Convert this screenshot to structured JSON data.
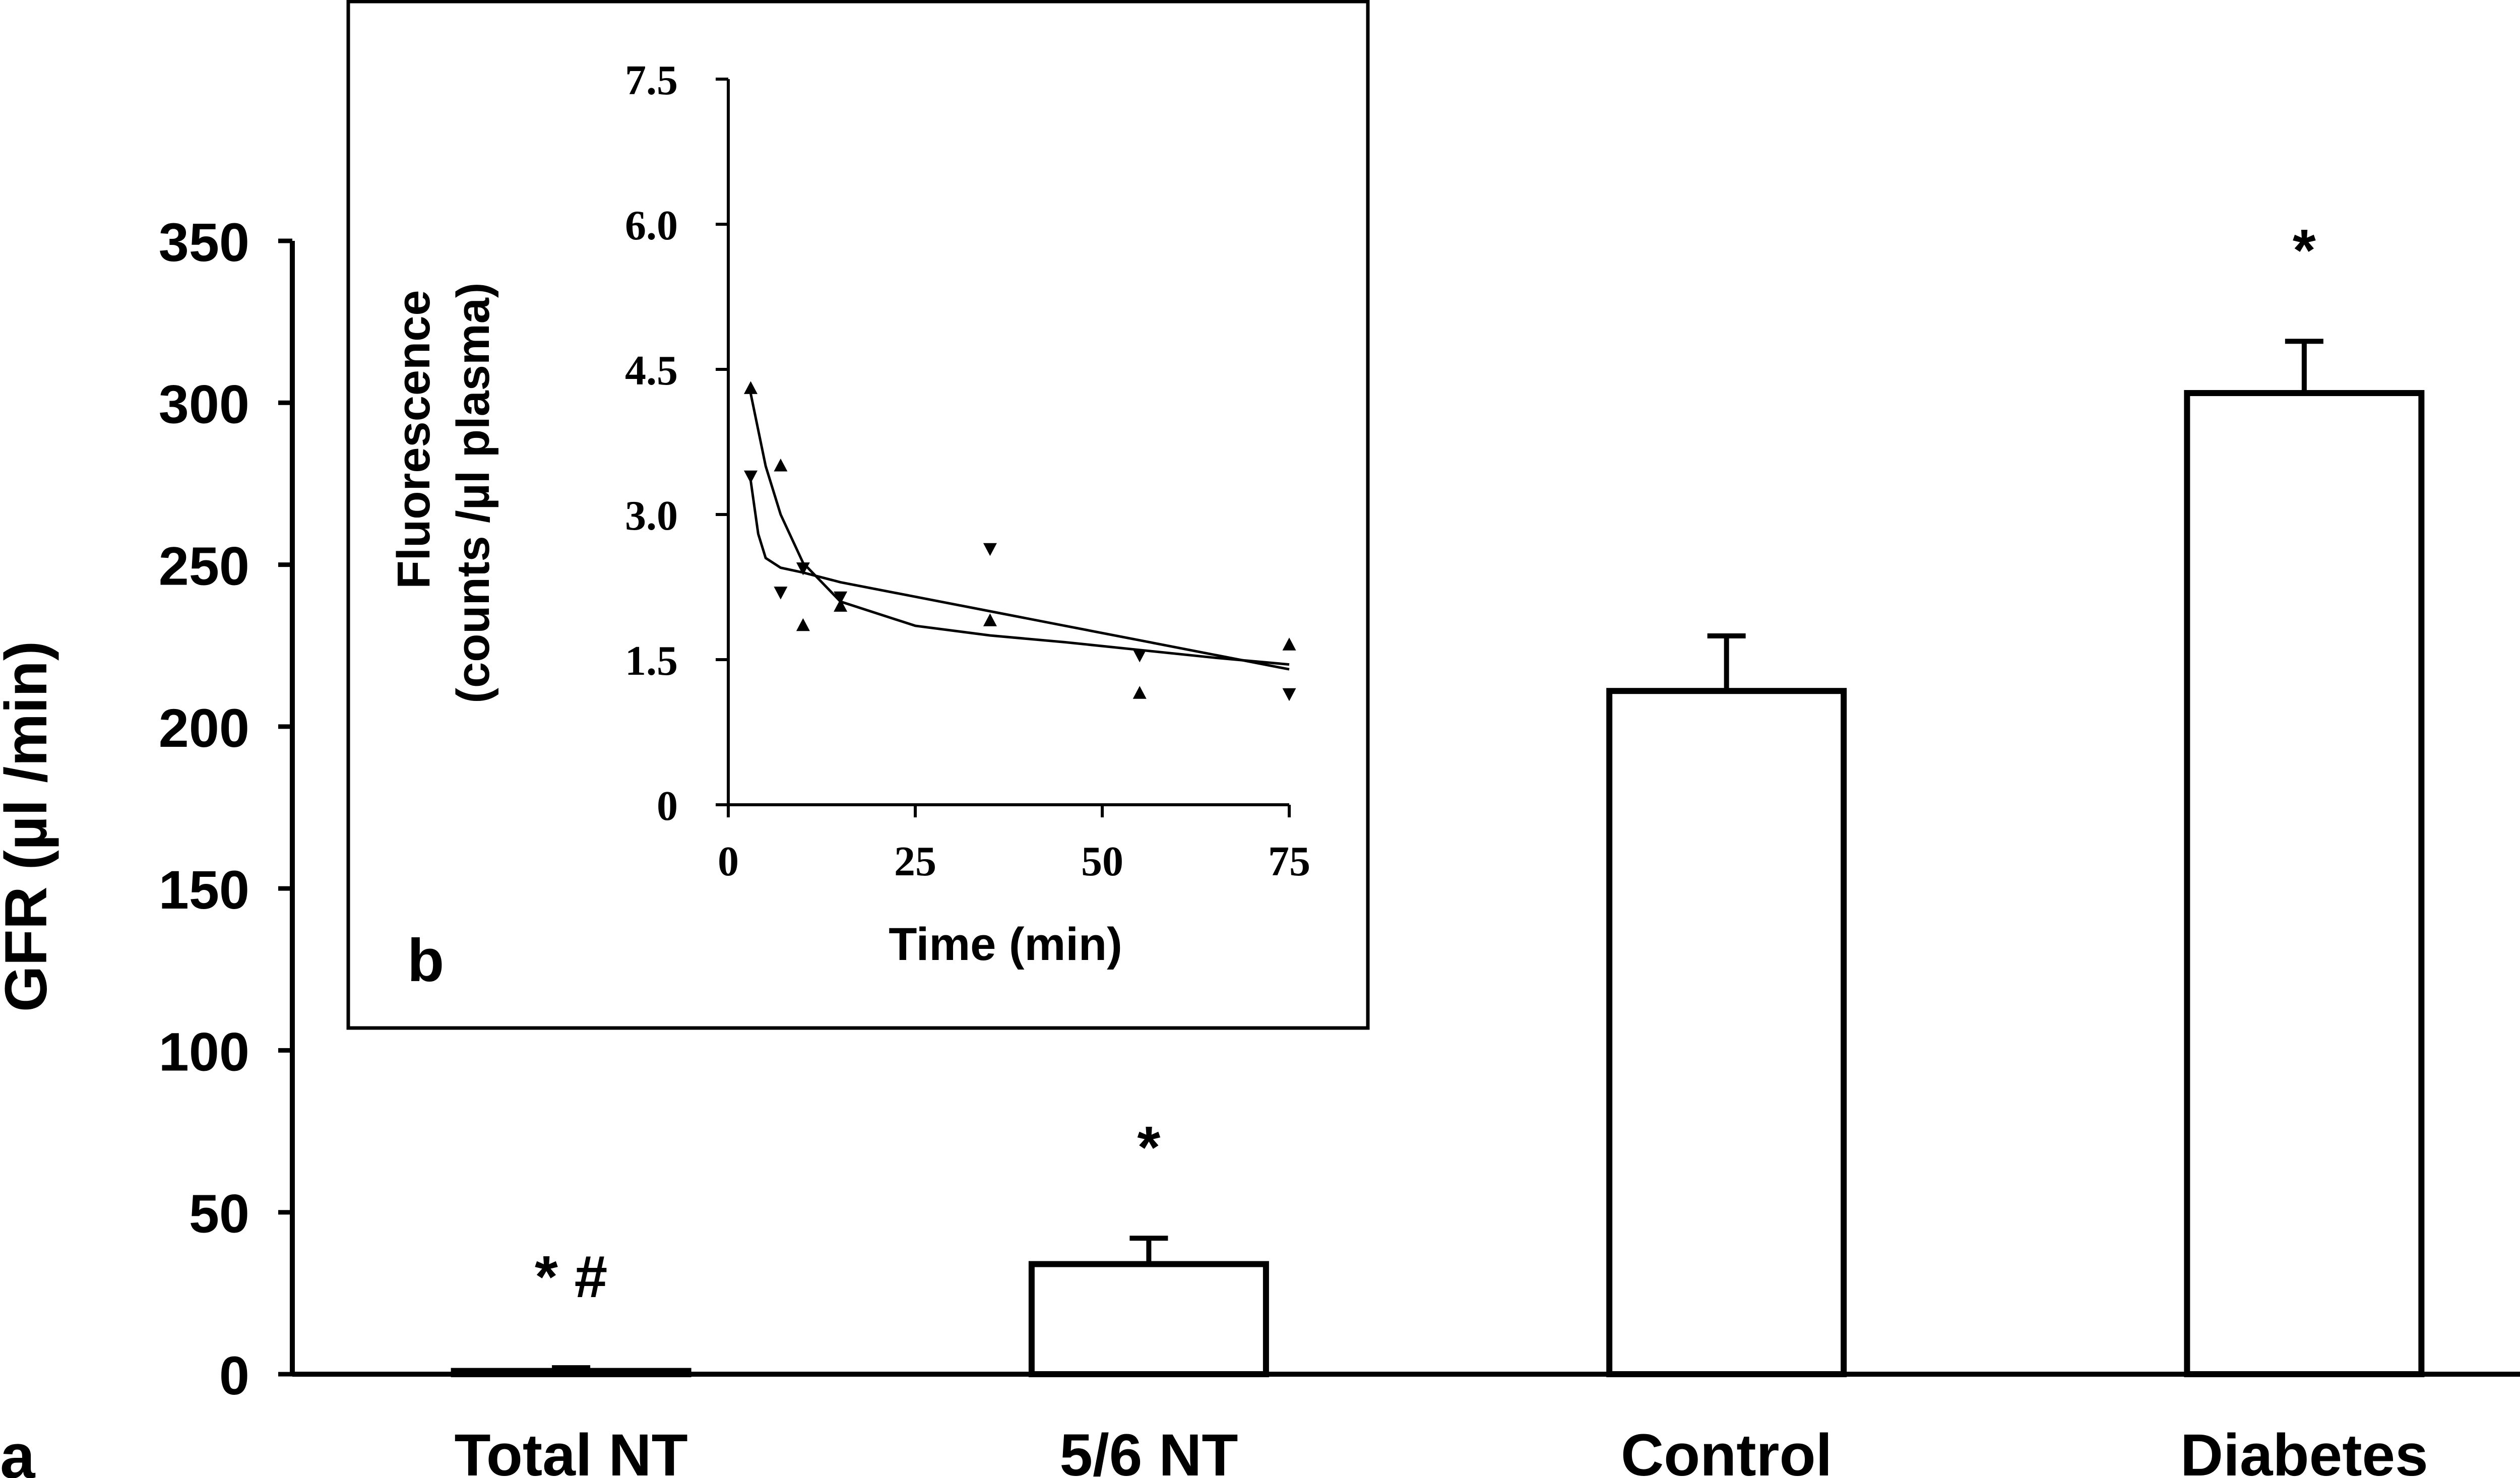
{
  "chart_data": [
    {
      "panel_label": "a",
      "type": "bar",
      "categories": [
        "Total NT",
        "5/6 NT",
        "Control",
        "Diabetes"
      ],
      "values": [
        1,
        34,
        211,
        303
      ],
      "errors": [
        1,
        8,
        17,
        16
      ],
      "annotations": [
        "* #",
        "*",
        "",
        "*"
      ],
      "xlabel": "",
      "ylabel": "GFR (µl /min)",
      "ylim": [
        0,
        350
      ],
      "yticks": [
        "0",
        "50",
        "100",
        "150",
        "200",
        "250",
        "300",
        "350"
      ],
      "ytick_values": [
        0,
        50,
        100,
        150,
        200,
        250,
        300,
        350
      ],
      "bar_fill": "#ffffff",
      "bar_stroke": "#000000",
      "grid": false
    },
    {
      "panel_label": "b",
      "type": "scatter",
      "xlabel": "Time (min)",
      "ylabel_line1": "Fluorescence",
      "ylabel_line2": "(counts /µl plasma)",
      "xlim": [
        0,
        75
      ],
      "ylim": [
        0,
        7.5
      ],
      "xticks": [
        "0",
        "25",
        "50",
        "75"
      ],
      "xtick_values": [
        0,
        25,
        50,
        75
      ],
      "yticks": [
        "0",
        "1.5",
        "3.0",
        "4.5",
        "6.0",
        "7.5"
      ],
      "ytick_values": [
        0,
        1.5,
        3.0,
        4.5,
        6.0,
        7.5
      ],
      "grid": false,
      "series": [
        {
          "marker": "triangle-up",
          "points": [
            [
              3,
              4.3
            ],
            [
              7,
              3.5
            ],
            [
              10,
              1.85
            ],
            [
              15,
              2.05
            ],
            [
              35,
              1.9
            ],
            [
              55,
              1.15
            ],
            [
              75,
              1.65
            ]
          ],
          "fit": [
            [
              3,
              4.25
            ],
            [
              5,
              3.5
            ],
            [
              7,
              3.0
            ],
            [
              10,
              2.5
            ],
            [
              15,
              2.1
            ],
            [
              25,
              1.85
            ],
            [
              35,
              1.75
            ],
            [
              45,
              1.68
            ],
            [
              55,
              1.6
            ],
            [
              65,
              1.52
            ],
            [
              75,
              1.45
            ]
          ]
        },
        {
          "marker": "triangle-down",
          "points": [
            [
              3,
              3.4
            ],
            [
              7,
              2.2
            ],
            [
              10,
              2.45
            ],
            [
              15,
              2.15
            ],
            [
              35,
              2.65
            ],
            [
              55,
              1.55
            ],
            [
              75,
              1.15
            ]
          ],
          "fit": [
            [
              3,
              3.35
            ],
            [
              4,
              2.8
            ],
            [
              5,
              2.55
            ],
            [
              7,
              2.45
            ],
            [
              10,
              2.4
            ],
            [
              15,
              2.3
            ],
            [
              25,
              2.15
            ],
            [
              35,
              2.0
            ],
            [
              45,
              1.85
            ],
            [
              55,
              1.7
            ],
            [
              65,
              1.55
            ],
            [
              75,
              1.4
            ]
          ]
        }
      ]
    }
  ]
}
